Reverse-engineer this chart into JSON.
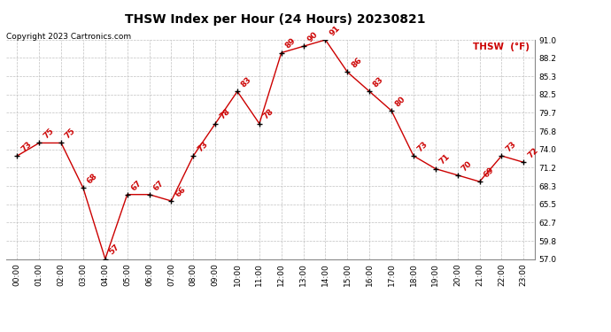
{
  "title": "THSW Index per Hour (24 Hours) 20230821",
  "copyright": "Copyright 2023 Cartronics.com",
  "legend_label": "THSW  (°F)",
  "hours": [
    0,
    1,
    2,
    3,
    4,
    5,
    6,
    7,
    8,
    9,
    10,
    11,
    12,
    13,
    14,
    15,
    16,
    17,
    18,
    19,
    20,
    21,
    22,
    23
  ],
  "x_labels": [
    "00:00",
    "01:00",
    "02:00",
    "03:00",
    "04:00",
    "05:00",
    "06:00",
    "07:00",
    "08:00",
    "09:00",
    "10:00",
    "11:00",
    "12:00",
    "13:00",
    "14:00",
    "15:00",
    "16:00",
    "17:00",
    "18:00",
    "19:00",
    "20:00",
    "21:00",
    "22:00",
    "23:00"
  ],
  "values": [
    73,
    75,
    75,
    68,
    57,
    67,
    67,
    66,
    73,
    78,
    83,
    78,
    89,
    90,
    91,
    86,
    83,
    80,
    73,
    71,
    70,
    69,
    73,
    72
  ],
  "line_color": "#cc0000",
  "point_color": "#000000",
  "label_color": "#cc0000",
  "background_color": "#ffffff",
  "grid_color": "#c0c0c0",
  "title_color": "#000000",
  "copyright_color": "#000000",
  "ylim": [
    57.0,
    91.0
  ],
  "yticks": [
    57.0,
    59.8,
    62.7,
    65.5,
    68.3,
    71.2,
    74.0,
    76.8,
    79.7,
    82.5,
    85.3,
    88.2,
    91.0
  ],
  "title_fontsize": 10,
  "label_fontsize": 6.5,
  "axis_fontsize": 6.5,
  "copyright_fontsize": 6.5,
  "legend_fontsize": 7.5
}
